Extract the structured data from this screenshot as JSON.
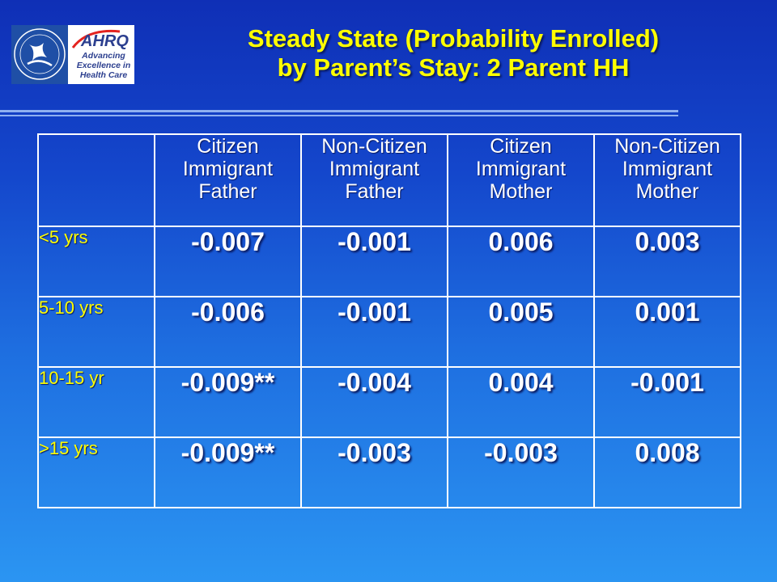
{
  "logo": {
    "ahrq_name": "AHRQ",
    "tagline_1": "Advancing",
    "tagline_2": "Excellence in",
    "tagline_3": "Health Care",
    "hhs_seal_text": "DEPARTMENT OF HEALTH & HUMAN SERVICES USA"
  },
  "title": {
    "line1": "Steady State (Probability Enrolled)",
    "line2": "by Parent’s Stay: 2 Parent HH"
  },
  "table": {
    "headers": [
      [
        "Citizen",
        "Immigrant",
        "Father"
      ],
      [
        "Non-Citizen",
        "Immigrant",
        "Father"
      ],
      [
        "Citizen",
        "Immigrant",
        "Mother"
      ],
      [
        "Non-Citizen",
        "Immigrant",
        "Mother"
      ]
    ],
    "rows": [
      {
        "label": "<5 yrs",
        "values": [
          "-0.007",
          "-0.001",
          "0.006",
          "0.003"
        ]
      },
      {
        "label": "5-10 yrs",
        "values": [
          "-0.006",
          "-0.001",
          "0.005",
          "0.001"
        ]
      },
      {
        "label": "10-15 yr",
        "values": [
          "-0.009**",
          "-0.004",
          "0.004",
          "-0.001"
        ]
      },
      {
        "label": ">15 yrs",
        "values": [
          "-0.009**",
          "-0.003",
          "-0.003",
          "0.008"
        ]
      }
    ]
  },
  "colors": {
    "title": "#ffff00",
    "row_label": "#ffff00",
    "cell_text": "#ffffff",
    "grid": "#ffffff",
    "background_top": "#0f2fb6",
    "background_bottom": "#2b95f2"
  }
}
